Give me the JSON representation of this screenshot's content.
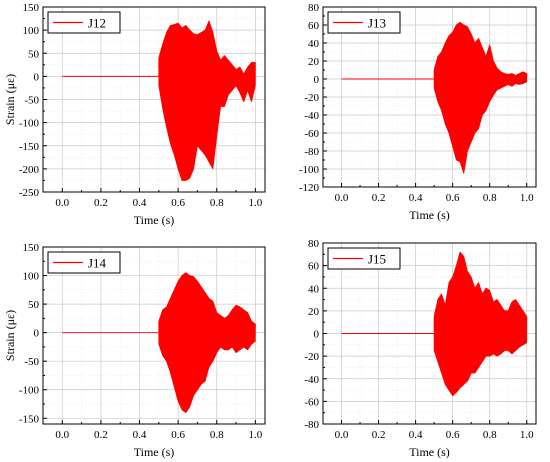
{
  "chart_data": [
    {
      "type": "line",
      "xlabel": "Time (s)",
      "ylabel": "Strain (με)",
      "xlim": [
        -0.1,
        1.05
      ],
      "ylim": [
        -250,
        150
      ],
      "xticks": [
        0.0,
        0.2,
        0.4,
        0.6,
        0.8,
        1.0
      ],
      "xtick_labels": [
        "0.0",
        "0.2",
        "0.4",
        "0.6",
        "0.8",
        "1.0"
      ],
      "yticks": [
        -250,
        -200,
        -150,
        -100,
        -50,
        0,
        50,
        100,
        150
      ],
      "ytick_labels": [
        "-250",
        "-200",
        "-150",
        "-100",
        "-50",
        "0",
        "50",
        "100",
        "150"
      ],
      "grid": true,
      "legend_position": "top-left",
      "color": "#ff0000",
      "series": [
        {
          "name": "J12",
          "quiet_until": 0.5,
          "envelope_t": [
            0.5,
            0.52,
            0.54,
            0.56,
            0.58,
            0.6,
            0.62,
            0.64,
            0.66,
            0.68,
            0.7,
            0.72,
            0.74,
            0.76,
            0.78,
            0.8,
            0.82,
            0.84,
            0.86,
            0.88,
            0.9,
            0.92,
            0.94,
            0.96,
            0.98,
            1.0
          ],
          "envelope_max": [
            40,
            70,
            95,
            110,
            112,
            115,
            105,
            110,
            100,
            92,
            90,
            95,
            100,
            120,
            95,
            55,
            35,
            45,
            35,
            25,
            15,
            20,
            5,
            20,
            30,
            30
          ],
          "envelope_min": [
            -20,
            -70,
            -110,
            -145,
            -170,
            -200,
            -225,
            -225,
            -220,
            -200,
            -150,
            -160,
            -170,
            -185,
            -200,
            -130,
            -65,
            -65,
            -40,
            -30,
            -20,
            -35,
            -55,
            -30,
            -55,
            -20
          ]
        }
      ]
    },
    {
      "type": "line",
      "xlabel": "Time (s)",
      "ylabel": "",
      "xlim": [
        -0.1,
        1.05
      ],
      "ylim": [
        -120,
        80
      ],
      "xticks": [
        0.0,
        0.2,
        0.4,
        0.6,
        0.8,
        1.0
      ],
      "xtick_labels": [
        "0.0",
        "0.2",
        "0.4",
        "0.6",
        "0.8",
        "1.0"
      ],
      "yticks": [
        -120,
        -100,
        -80,
        -60,
        -40,
        -20,
        0,
        20,
        40,
        60,
        80
      ],
      "ytick_labels": [
        "-120",
        "-100",
        "-80",
        "-60",
        "-40",
        "-20",
        "0",
        "20",
        "40",
        "60",
        "80"
      ],
      "grid": true,
      "legend_position": "top-left",
      "color": "#ff0000",
      "series": [
        {
          "name": "J13",
          "quiet_until": 0.5,
          "envelope_t": [
            0.5,
            0.52,
            0.54,
            0.56,
            0.58,
            0.6,
            0.62,
            0.64,
            0.66,
            0.68,
            0.7,
            0.72,
            0.74,
            0.76,
            0.78,
            0.8,
            0.82,
            0.84,
            0.86,
            0.88,
            0.9,
            0.92,
            0.94,
            0.96,
            0.98,
            1.0
          ],
          "envelope_max": [
            10,
            25,
            30,
            40,
            48,
            52,
            60,
            63,
            60,
            58,
            50,
            40,
            45,
            35,
            25,
            38,
            20,
            12,
            8,
            6,
            5,
            6,
            4,
            6,
            8,
            6
          ],
          "envelope_min": [
            -10,
            -25,
            -35,
            -50,
            -60,
            -75,
            -90,
            -92,
            -105,
            -80,
            -70,
            -60,
            -55,
            -40,
            -35,
            -25,
            -18,
            -12,
            -10,
            -8,
            -6,
            -8,
            -5,
            -6,
            -5,
            -3
          ]
        }
      ]
    },
    {
      "type": "line",
      "xlabel": "Time (s)",
      "ylabel": "Strain (με)",
      "xlim": [
        -0.1,
        1.05
      ],
      "ylim": [
        -160,
        150
      ],
      "xticks": [
        0.0,
        0.2,
        0.4,
        0.6,
        0.8,
        1.0
      ],
      "xtick_labels": [
        "0.0",
        "0.2",
        "0.4",
        "0.6",
        "0.8",
        "1.0"
      ],
      "yticks": [
        -150,
        -100,
        -50,
        0,
        50,
        100,
        150
      ],
      "ytick_labels": [
        "-150",
        "-100",
        "-50",
        "0",
        "50",
        "100",
        "150"
      ],
      "grid": true,
      "legend_position": "top-left",
      "color": "#ff0000",
      "series": [
        {
          "name": "J14",
          "quiet_until": 0.5,
          "envelope_t": [
            0.5,
            0.52,
            0.54,
            0.56,
            0.58,
            0.6,
            0.62,
            0.64,
            0.66,
            0.68,
            0.7,
            0.72,
            0.74,
            0.76,
            0.78,
            0.8,
            0.82,
            0.84,
            0.86,
            0.88,
            0.9,
            0.92,
            0.94,
            0.96,
            0.98,
            1.0
          ],
          "envelope_max": [
            20,
            40,
            45,
            60,
            75,
            90,
            100,
            105,
            100,
            98,
            90,
            80,
            70,
            60,
            55,
            35,
            30,
            25,
            30,
            40,
            48,
            45,
            40,
            35,
            20,
            15
          ],
          "envelope_min": [
            -20,
            -40,
            -50,
            -70,
            -95,
            -120,
            -135,
            -140,
            -130,
            -110,
            -100,
            -90,
            -85,
            -60,
            -50,
            -35,
            -25,
            -30,
            -30,
            -25,
            -35,
            -30,
            -25,
            -30,
            -20,
            -15
          ]
        }
      ]
    },
    {
      "type": "line",
      "xlabel": "Time (s)",
      "ylabel": "",
      "xlim": [
        -0.1,
        1.05
      ],
      "ylim": [
        -80,
        80
      ],
      "xticks": [
        0.0,
        0.2,
        0.4,
        0.6,
        0.8,
        1.0
      ],
      "xtick_labels": [
        "0.0",
        "0.2",
        "0.4",
        "0.6",
        "0.8",
        "1.0"
      ],
      "yticks": [
        -80,
        -60,
        -40,
        -20,
        0,
        20,
        40,
        60,
        80
      ],
      "ytick_labels": [
        "-80",
        "-60",
        "-40",
        "-20",
        "0",
        "20",
        "40",
        "60",
        "80"
      ],
      "grid": true,
      "legend_position": "top-left",
      "color": "#ff0000",
      "series": [
        {
          "name": "J15",
          "quiet_until": 0.5,
          "envelope_t": [
            0.5,
            0.52,
            0.54,
            0.56,
            0.58,
            0.6,
            0.62,
            0.64,
            0.66,
            0.68,
            0.7,
            0.72,
            0.74,
            0.76,
            0.78,
            0.8,
            0.82,
            0.84,
            0.86,
            0.88,
            0.9,
            0.92,
            0.94,
            0.96,
            0.98,
            1.0
          ],
          "envelope_max": [
            15,
            30,
            35,
            25,
            45,
            50,
            60,
            72,
            68,
            55,
            50,
            40,
            45,
            35,
            40,
            38,
            28,
            30,
            25,
            20,
            20,
            28,
            30,
            25,
            20,
            15
          ],
          "envelope_min": [
            -15,
            -25,
            -35,
            -45,
            -50,
            -55,
            -52,
            -48,
            -45,
            -42,
            -35,
            -35,
            -30,
            -25,
            -20,
            -20,
            -18,
            -20,
            -18,
            -15,
            -15,
            -18,
            -15,
            -12,
            -10,
            -8
          ]
        }
      ]
    }
  ]
}
